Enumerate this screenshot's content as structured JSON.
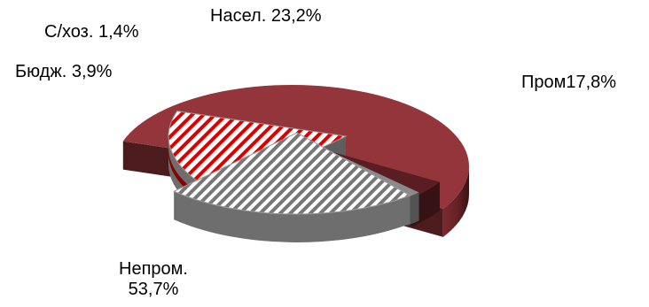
{
  "chart_data": {
    "type": "pie",
    "style": "3d-exploded",
    "title": "",
    "slices": [
      {
        "label": "Непром.",
        "value_text": "53,7%",
        "value": 53.7,
        "color": "#93353a",
        "pattern": "solid"
      },
      {
        "label": "Бюдж.",
        "value_text": "3,9%",
        "value": 3.9,
        "color": "#5a1e22",
        "pattern": "solid"
      },
      {
        "label": "С/хоз.",
        "value_text": "1,4%",
        "value": 1.4,
        "color": "#8a8a8a",
        "pattern": "solid"
      },
      {
        "label": "Насел.",
        "value_text": "23,2%",
        "value": 23.2,
        "color": "#707070",
        "pattern": "grey-white-stripes"
      },
      {
        "label": "Пром",
        "value_text": "17,8%",
        "value": 17.8,
        "color": "#e00000",
        "pattern": "red-white-stripes"
      }
    ]
  }
}
